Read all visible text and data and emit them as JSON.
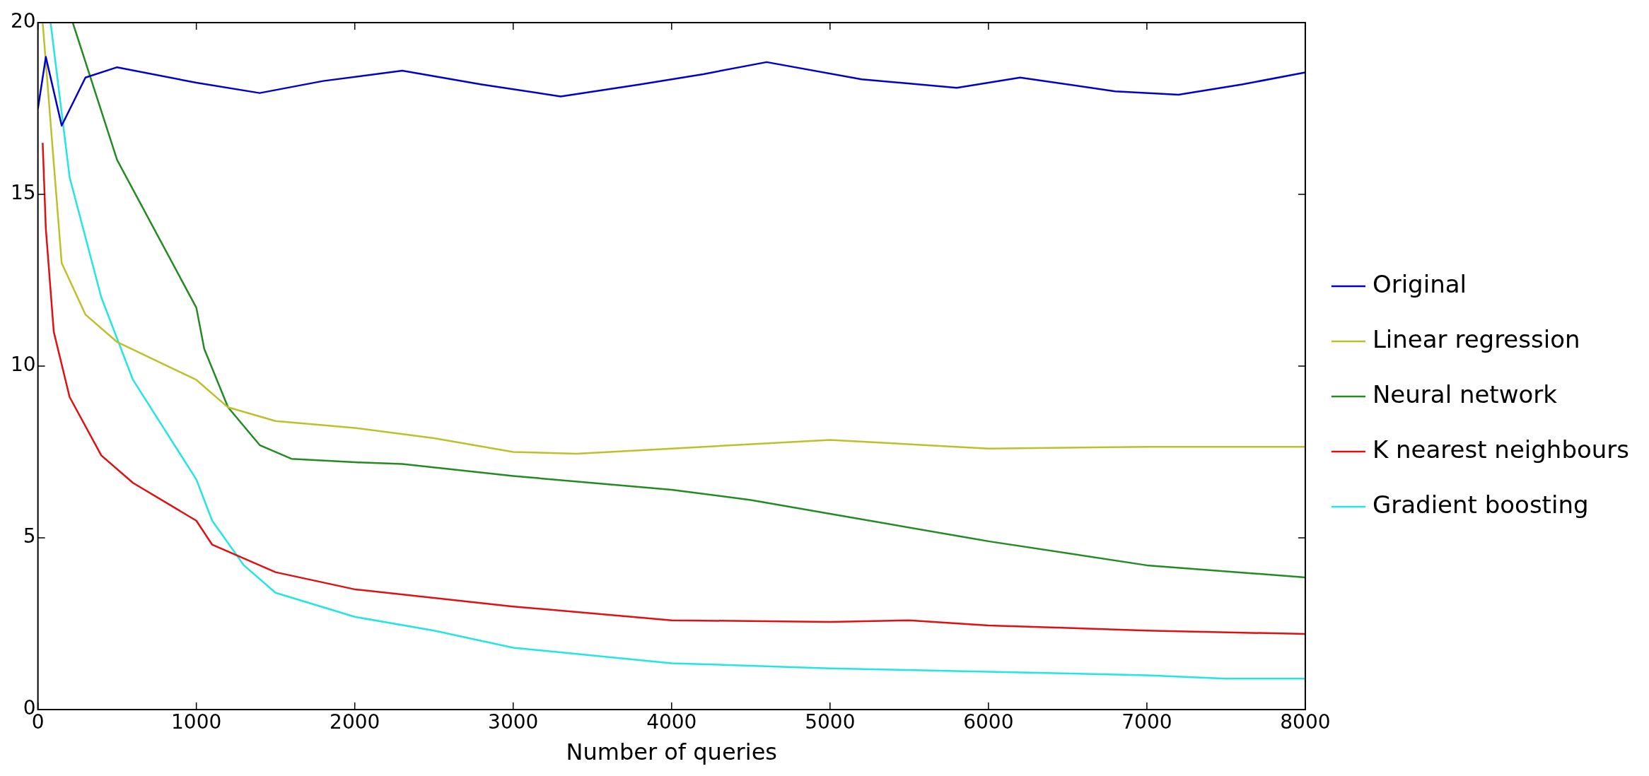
{
  "chart_data": {
    "type": "line",
    "xlabel": "Number of queries",
    "xlim": [
      0,
      8000
    ],
    "xticks": [
      0,
      1000,
      2000,
      3000,
      4000,
      5000,
      6000,
      7000,
      8000
    ],
    "ylim": [
      0,
      20
    ],
    "yticks": [
      0,
      5,
      10,
      15,
      20
    ],
    "grid": false,
    "legend": "right",
    "marker": "none",
    "line_style": "solid",
    "series": [
      {
        "name": "Original",
        "color": "#0000cc",
        "x": [
          0,
          50,
          150,
          300,
          500,
          1000,
          1400,
          1800,
          2300,
          2800,
          3300,
          3800,
          4200,
          4600,
          5200,
          5800,
          6200,
          6800,
          7200,
          7600,
          8000
        ],
        "values": [
          17.5,
          19,
          17,
          18.4,
          18.7,
          18.25,
          17.95,
          18.3,
          18.6,
          18.2,
          17.85,
          18.2,
          18.5,
          18.85,
          18.35,
          18.1,
          18.4,
          18.0,
          17.9,
          18.2,
          18.55
        ]
      },
      {
        "name": "Linear regression",
        "color": "#bfbf2a",
        "x": [
          30,
          150,
          300,
          500,
          1000,
          1200,
          1500,
          2000,
          2500,
          3000,
          3400,
          4000,
          5000,
          6000,
          7000,
          8000
        ],
        "values": [
          20,
          13,
          11.5,
          10.7,
          9.6,
          8.8,
          8.4,
          8.2,
          7.9,
          7.5,
          7.45,
          7.6,
          7.85,
          7.6,
          7.65,
          7.65
        ]
      },
      {
        "name": "Neural network",
        "color": "#228b22",
        "x": [
          220,
          500,
          1000,
          1050,
          1200,
          1400,
          1600,
          2000,
          2300,
          3000,
          4000,
          4500,
          5000,
          6000,
          7000,
          8000
        ],
        "values": [
          20,
          16,
          11.7,
          10.5,
          8.8,
          7.7,
          7.3,
          7.2,
          7.15,
          6.8,
          6.4,
          6.1,
          5.7,
          4.9,
          4.2,
          3.85
        ]
      },
      {
        "name": "K nearest neighbours",
        "color": "#e01010",
        "x": [
          30,
          50,
          100,
          200,
          400,
          600,
          1000,
          1100,
          1500,
          2000,
          3000,
          4000,
          5000,
          5500,
          6000,
          7000,
          8000
        ],
        "values": [
          16.5,
          14,
          11,
          9.1,
          7.4,
          6.6,
          5.5,
          4.8,
          4,
          3.5,
          3,
          2.6,
          2.55,
          2.6,
          2.45,
          2.3,
          2.2
        ]
      },
      {
        "name": "Gradient boosting",
        "color": "#22e5e5",
        "x": [
          80,
          200,
          400,
          600,
          1000,
          1100,
          1300,
          1500,
          2000,
          2500,
          3000,
          4000,
          5000,
          6000,
          7000,
          7500,
          8000
        ],
        "values": [
          20,
          15.5,
          12,
          9.6,
          6.7,
          5.5,
          4.2,
          3.4,
          2.7,
          2.3,
          1.8,
          1.35,
          1.2,
          1.1,
          1.0,
          0.9,
          0.9
        ]
      }
    ]
  }
}
